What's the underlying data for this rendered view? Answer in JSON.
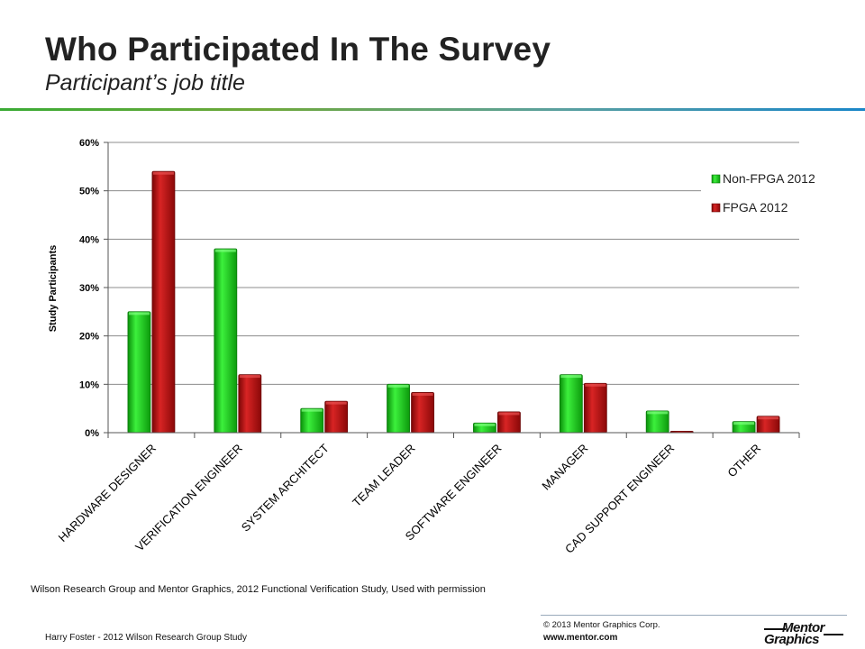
{
  "slide": {
    "title": "Who Participated In The Survey",
    "subtitle": "Participant’s job title",
    "source": "Wilson Research Group and Mentor Graphics, 2012 Functional Verification Study,    Used with permission",
    "presenter": "Harry Foster - 2012 Wilson Research Group Study",
    "copyright": "© 2013 Mentor Graphics Corp.",
    "website": "www.mentor.com",
    "logo_text_top": "Mentor",
    "logo_text_bottom": "Graphics"
  },
  "chart_data": {
    "type": "bar",
    "title": "",
    "xlabel": "",
    "ylabel": "Study Participants",
    "ylim": [
      0,
      60
    ],
    "yticks": [
      0,
      10,
      20,
      30,
      40,
      50,
      60
    ],
    "ytick_labels": [
      "0%",
      "10%",
      "20%",
      "30%",
      "40%",
      "50%",
      "60%"
    ],
    "categories": [
      "HARDWARE DESIGNER",
      "VERIFICATION ENGINEER",
      "SYSTEM ARCHITECT",
      "TEAM LEADER",
      "SOFTWARE ENGINEER",
      "MANAGER",
      "CAD SUPPORT ENGINEER",
      "OTHER"
    ],
    "series": [
      {
        "name": "Non-FPGA 2012",
        "color": "#1ed21e",
        "values": [
          25,
          38,
          5,
          10,
          2,
          12,
          4.5,
          2.3
        ]
      },
      {
        "name": "FPGA 2012",
        "color": "#c01010",
        "values": [
          54,
          12,
          6.5,
          8.3,
          4.3,
          10.2,
          0.3,
          3.4
        ]
      }
    ],
    "grid": true,
    "legend_position": "top-right"
  }
}
